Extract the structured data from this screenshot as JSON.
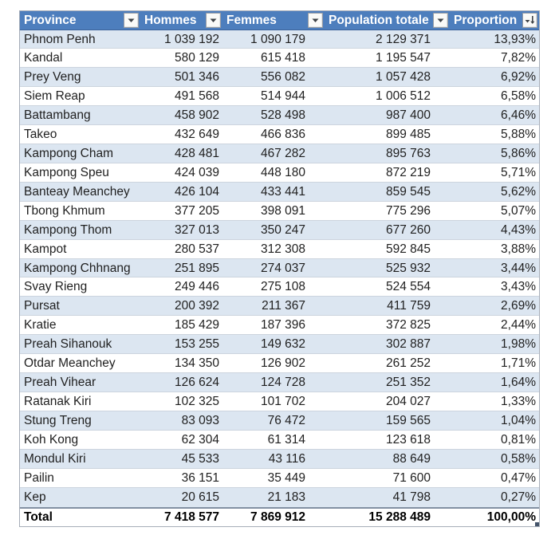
{
  "colors": {
    "header_bg": "#4d7ebd",
    "header_text": "#ffffff",
    "band_fill": "#dce6f1",
    "row_fill": "#ffffff",
    "row_border": "#ccd4de",
    "table_border": "#a6adb8",
    "total_border": "#8290a2",
    "resize_handle": "#44546a"
  },
  "table": {
    "columns": [
      {
        "key": "province",
        "label": "Province",
        "filter_icon": "filter-dropdown-icon"
      },
      {
        "key": "hommes",
        "label": "Hommes",
        "filter_icon": "filter-dropdown-icon"
      },
      {
        "key": "femmes",
        "label": "Femmes",
        "filter_icon": "filter-dropdown-icon"
      },
      {
        "key": "population",
        "label": "Population totale",
        "filter_icon": "filter-dropdown-icon"
      },
      {
        "key": "proportion",
        "label": "Proportion",
        "filter_icon": "filter-sort-descending-icon"
      }
    ],
    "rows": [
      {
        "province": "Phnom Penh",
        "hommes": "1 039 192",
        "femmes": "1 090 179",
        "population": "2 129 371",
        "proportion": "13,93%"
      },
      {
        "province": "Kandal",
        "hommes": "580 129",
        "femmes": "615 418",
        "population": "1 195 547",
        "proportion": "7,82%"
      },
      {
        "province": "Prey Veng",
        "hommes": "501 346",
        "femmes": "556 082",
        "population": "1 057 428",
        "proportion": "6,92%"
      },
      {
        "province": "Siem Reap",
        "hommes": "491 568",
        "femmes": "514 944",
        "population": "1 006 512",
        "proportion": "6,58%"
      },
      {
        "province": "Battambang",
        "hommes": "458 902",
        "femmes": "528 498",
        "population": "987 400",
        "proportion": "6,46%"
      },
      {
        "province": "Takeo",
        "hommes": "432 649",
        "femmes": "466 836",
        "population": "899 485",
        "proportion": "5,88%"
      },
      {
        "province": "Kampong Cham",
        "hommes": "428 481",
        "femmes": "467 282",
        "population": "895 763",
        "proportion": "5,86%"
      },
      {
        "province": "Kampong Speu",
        "hommes": "424 039",
        "femmes": "448 180",
        "population": "872 219",
        "proportion": "5,71%"
      },
      {
        "province": "Banteay Meanchey",
        "hommes": "426 104",
        "femmes": "433 441",
        "population": "859 545",
        "proportion": "5,62%"
      },
      {
        "province": "Tbong Khmum",
        "hommes": "377 205",
        "femmes": "398 091",
        "population": "775 296",
        "proportion": "5,07%"
      },
      {
        "province": "Kampong Thom",
        "hommes": "327 013",
        "femmes": "350 247",
        "population": "677 260",
        "proportion": "4,43%"
      },
      {
        "province": "Kampot",
        "hommes": "280 537",
        "femmes": "312 308",
        "population": "592 845",
        "proportion": "3,88%"
      },
      {
        "province": "Kampong Chhnang",
        "hommes": "251 895",
        "femmes": "274 037",
        "population": "525 932",
        "proportion": "3,44%"
      },
      {
        "province": "Svay Rieng",
        "hommes": "249 446",
        "femmes": "275 108",
        "population": "524 554",
        "proportion": "3,43%"
      },
      {
        "province": "Pursat",
        "hommes": "200 392",
        "femmes": "211 367",
        "population": "411 759",
        "proportion": "2,69%"
      },
      {
        "province": "Kratie",
        "hommes": "185 429",
        "femmes": "187 396",
        "population": "372 825",
        "proportion": "2,44%"
      },
      {
        "province": "Preah Sihanouk",
        "hommes": "153 255",
        "femmes": "149 632",
        "population": "302 887",
        "proportion": "1,98%"
      },
      {
        "province": "Otdar Meanchey",
        "hommes": "134 350",
        "femmes": "126 902",
        "population": "261 252",
        "proportion": "1,71%"
      },
      {
        "province": "Preah Vihear",
        "hommes": "126 624",
        "femmes": "124 728",
        "population": "251 352",
        "proportion": "1,64%"
      },
      {
        "province": "Ratanak Kiri",
        "hommes": "102 325",
        "femmes": "101 702",
        "population": "204 027",
        "proportion": "1,33%"
      },
      {
        "province": "Stung Treng",
        "hommes": "83 093",
        "femmes": "76 472",
        "population": "159 565",
        "proportion": "1,04%"
      },
      {
        "province": "Koh Kong",
        "hommes": "62 304",
        "femmes": "61 314",
        "population": "123 618",
        "proportion": "0,81%"
      },
      {
        "province": "Mondul Kiri",
        "hommes": "45 533",
        "femmes": "43 116",
        "population": "88 649",
        "proportion": "0,58%"
      },
      {
        "province": "Pailin",
        "hommes": "36 151",
        "femmes": "35 449",
        "population": "71 600",
        "proportion": "0,47%"
      },
      {
        "province": "Kep",
        "hommes": "20 615",
        "femmes": "21 183",
        "population": "41 798",
        "proportion": "0,27%"
      }
    ],
    "total": {
      "province": "Total",
      "hommes": "7 418 577",
      "femmes": "7 869 912",
      "population": "15 288 489",
      "proportion": "100,00%"
    }
  }
}
